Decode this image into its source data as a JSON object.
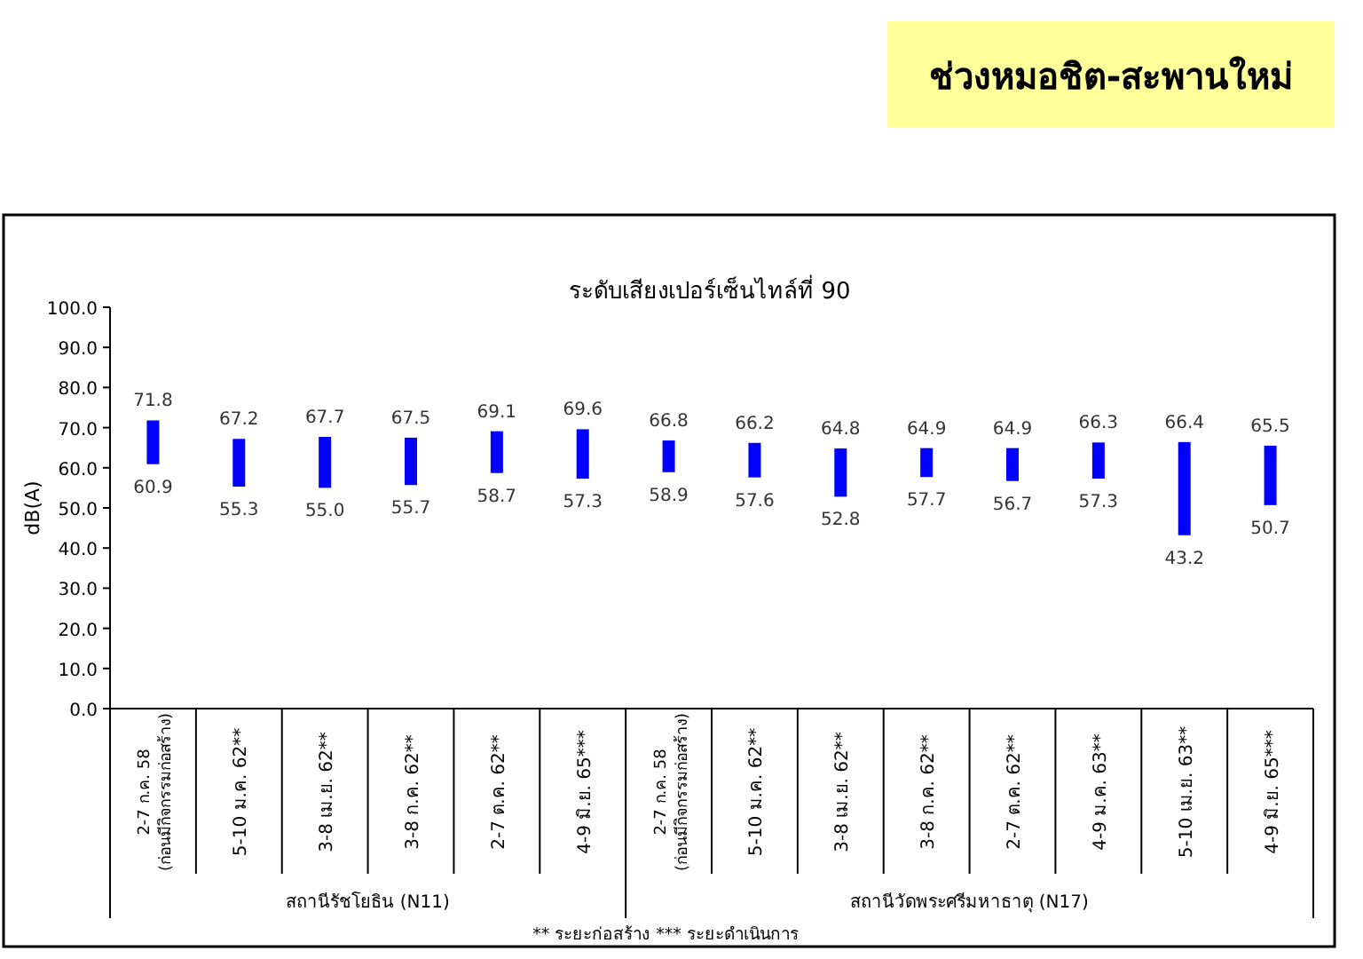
{
  "chart_data": {
    "type": "bar",
    "title": "ช่วงหมอชิต-สะพานใหม่",
    "subtitle": "ระดับเสียงเปอร์เซ็นไทล์ที่ 90",
    "ylabel": "dB(A)",
    "categories": [
      "2-7 ก.ค. 58\n(ก่อนมีกิจกรรมก่อสร้าง)",
      "5-10 ม.ค. 62**",
      "3-8 เม.ย. 62**",
      "3-8 ก.ค. 62**",
      "2-7 ต.ค. 62**",
      "4-9 มิ.ย. 65***",
      "2-7 ก.ค. 58\n(ก่อนมีกิจกรรมก่อสร้าง)",
      "5-10 ม.ค. 62**",
      "3-8 เม.ย. 62**",
      "3-8 ก.ค. 62**",
      "2-7 ต.ค. 62**",
      "4-9 ม.ค. 63**",
      "5-10 เม.ย. 63**",
      "4-9 มิ.ย. 65***"
    ],
    "base": [
      60.9,
      55.3,
      55.0,
      55.7,
      58.7,
      57.3,
      58.9,
      57.6,
      52.8,
      57.7,
      56.7,
      57.3,
      43.2,
      50.7
    ],
    "values": [
      10.9,
      11.9,
      12.7,
      11.8,
      10.4,
      12.3,
      7.9,
      8.6,
      12.0,
      7.2,
      8.2,
      9.0,
      23.2,
      14.8
    ],
    "color": "#0000ff",
    "ylim": [
      0,
      100
    ],
    "yticks": [
      {
        "value": 0,
        "label": "0.0"
      },
      {
        "value": 10,
        "label": "10.0"
      },
      {
        "value": 20,
        "label": "20.0"
      },
      {
        "value": 30,
        "label": "30.0"
      },
      {
        "value": 40,
        "label": "40.0"
      },
      {
        "value": 50,
        "label": "50.0"
      },
      {
        "value": 60,
        "label": "60.0"
      },
      {
        "value": 70,
        "label": "70.0"
      },
      {
        "value": 80,
        "label": "80.0"
      },
      {
        "value": 90,
        "label": "90.0"
      },
      {
        "value": 100,
        "label": "100.0"
      }
    ],
    "grid": false,
    "annotations": [
      "71.8",
      "60.9",
      "67.2",
      "55.3",
      "67.7",
      "55.0",
      "67.5",
      "55.7",
      "69.1",
      "58.7",
      "69.6",
      "57.3",
      "66.8",
      "58.9",
      "66.2",
      "57.6",
      "64.8",
      "52.8",
      "64.9",
      "57.7",
      "64.9",
      "56.7",
      "66.3",
      "57.3",
      "66.4",
      "43.2",
      "65.5",
      "50.7",
      "สถานีรัชโยธิน (N11)",
      "สถานีวัดพระศรีมหาธาตุ (N17)",
      "** ระยะก่อสร้าง    *** ระยะดำเนินการ"
    ]
  }
}
